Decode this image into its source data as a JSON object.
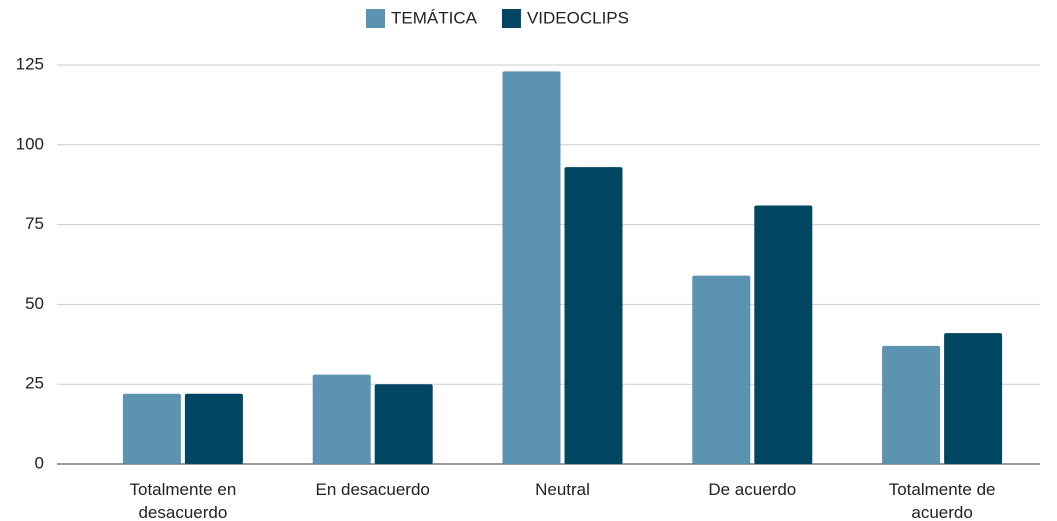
{
  "chart_data": {
    "type": "bar",
    "categories": [
      "Totalmente en desacuerdo",
      "En desacuerdo",
      "Neutral",
      "De acuerdo",
      "Totalmente de acuerdo"
    ],
    "series": [
      {
        "name": "TEMÁTICA",
        "color": "#5b93b1",
        "values": [
          22,
          28,
          123,
          59,
          37
        ]
      },
      {
        "name": "VIDEOCLIPS",
        "color": "#004561",
        "values": [
          22,
          25,
          93,
          81,
          41
        ]
      }
    ],
    "ylim": [
      0,
      125
    ],
    "yticks": [
      0,
      25,
      50,
      75,
      100,
      125
    ],
    "grid": true,
    "legend": "top"
  }
}
